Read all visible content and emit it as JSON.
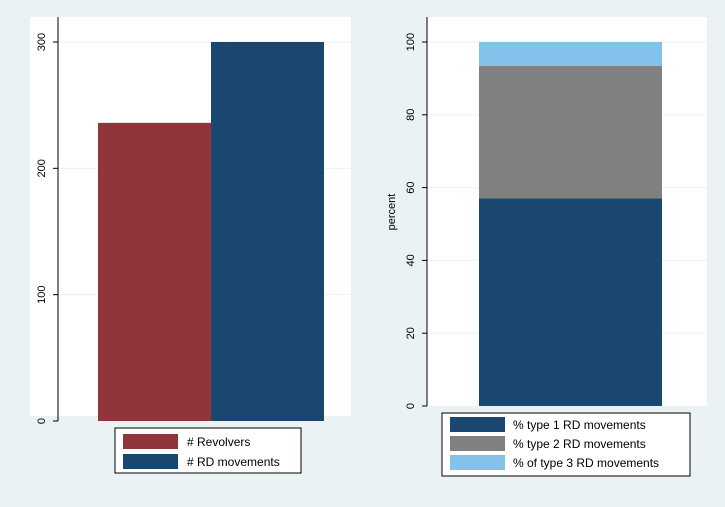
{
  "chart_data": [
    {
      "type": "bar",
      "ylim": [
        0,
        300
      ],
      "yticks": [
        0,
        100,
        200,
        300
      ],
      "grid": true,
      "legend_position": "bottom",
      "series": [
        {
          "name": "# Revolvers",
          "value": 236,
          "color": "#90353b"
        },
        {
          "name": "# RD movements",
          "value": 300,
          "color": "#1a476f"
        }
      ]
    },
    {
      "type": "bar",
      "stacked": true,
      "ylabel": "percent",
      "ylim": [
        0,
        100
      ],
      "yticks": [
        0,
        20,
        40,
        60,
        80,
        100
      ],
      "grid": true,
      "legend_position": "bottom",
      "series": [
        {
          "name": "% type 1 RD movements",
          "value": 57,
          "color": "#1a476f"
        },
        {
          "name": "% type 2 RD movements",
          "value": 36.4,
          "color": "#808080"
        },
        {
          "name": "% of type 3 RD movements",
          "value": 6.6,
          "color": "#83c3eb"
        }
      ]
    }
  ]
}
